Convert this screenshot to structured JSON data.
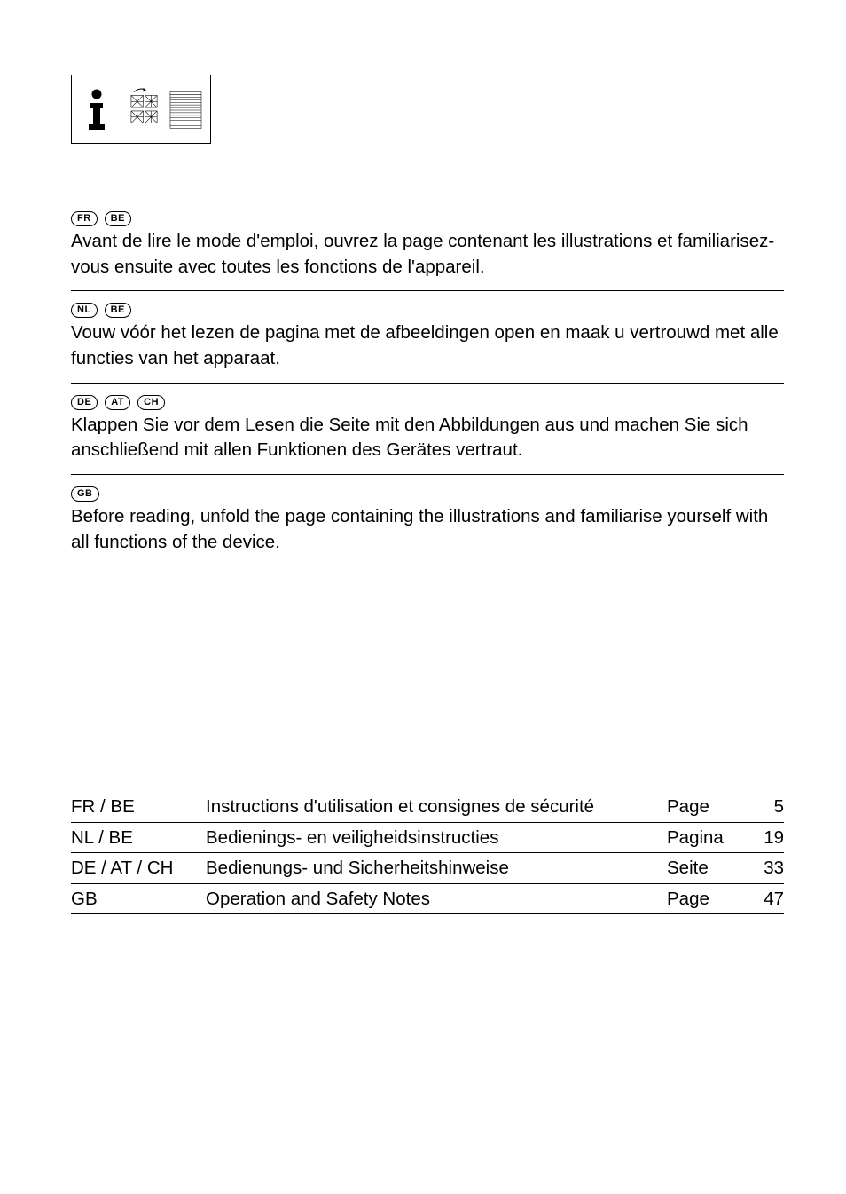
{
  "colors": {
    "text": "#000000",
    "background": "#ffffff",
    "rule": "#000000"
  },
  "blocks": [
    {
      "badges": [
        "FR",
        "BE"
      ],
      "text": "Avant de lire le mode d'emploi, ouvrez la page contenant les illustrations et familiarisez-vous ensuite avec toutes les fonctions de l'appareil."
    },
    {
      "badges": [
        "NL",
        "BE"
      ],
      "text": "Vouw vóór het lezen de pagina met de afbeeldingen open en maak u vertrouwd met alle functies van het apparaat."
    },
    {
      "badges": [
        "DE",
        "AT",
        "CH"
      ],
      "text": "Klappen Sie vor dem Lesen die Seite mit den Abbildungen aus und machen Sie sich anschließend mit allen Funktionen des Gerätes vertraut."
    },
    {
      "badges": [
        "GB"
      ],
      "text": "Before reading, unfold the page containing the illustrations and familiarise yourself with all functions of the device."
    }
  ],
  "toc": [
    {
      "lang": "FR / BE",
      "title": "Instructions d'utilisation et consignes de sécurité",
      "label": "Page",
      "page": "5"
    },
    {
      "lang": "NL / BE",
      "title": "Bedienings- en veiligheidsinstructies",
      "label": "Pagina",
      "page": "19"
    },
    {
      "lang": "DE / AT / CH",
      "title": "Bedienungs- und Sicherheitshinweise",
      "label": "Seite",
      "page": "33"
    },
    {
      "lang": "GB",
      "title": "Operation and Safety Notes",
      "label": "Page",
      "page": "47"
    }
  ]
}
